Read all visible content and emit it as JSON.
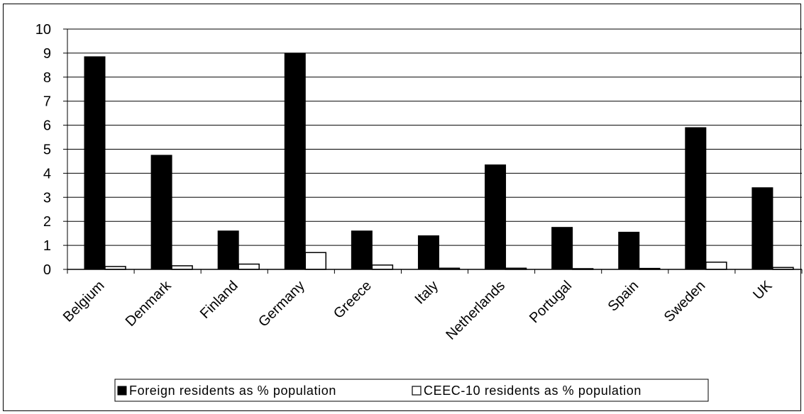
{
  "chart_data": {
    "type": "bar",
    "categories": [
      "Belgium",
      "Denmark",
      "Finland",
      "Germany",
      "Greece",
      "Italy",
      "Netherlands",
      "Portugal",
      "Spain",
      "Sweden",
      "UK"
    ],
    "series": [
      {
        "name": "Foreign residents as % population",
        "values": [
          8.85,
          4.75,
          1.6,
          9.0,
          1.6,
          1.4,
          4.35,
          1.75,
          1.55,
          5.9,
          3.4
        ],
        "color": "#000000"
      },
      {
        "name": "CEEC-10 residents as % population",
        "values": [
          0.12,
          0.15,
          0.22,
          0.7,
          0.18,
          0.05,
          0.05,
          0.03,
          0.04,
          0.3,
          0.08
        ],
        "color": "#ffffff"
      }
    ],
    "ylim": [
      0,
      10
    ],
    "yticks": [
      "0",
      "1",
      "2",
      "3",
      "4",
      "5",
      "6",
      "7",
      "8",
      "9",
      "10"
    ],
    "grid": true,
    "legend_position": "bottom",
    "title": "",
    "xlabel": "",
    "ylabel": ""
  }
}
